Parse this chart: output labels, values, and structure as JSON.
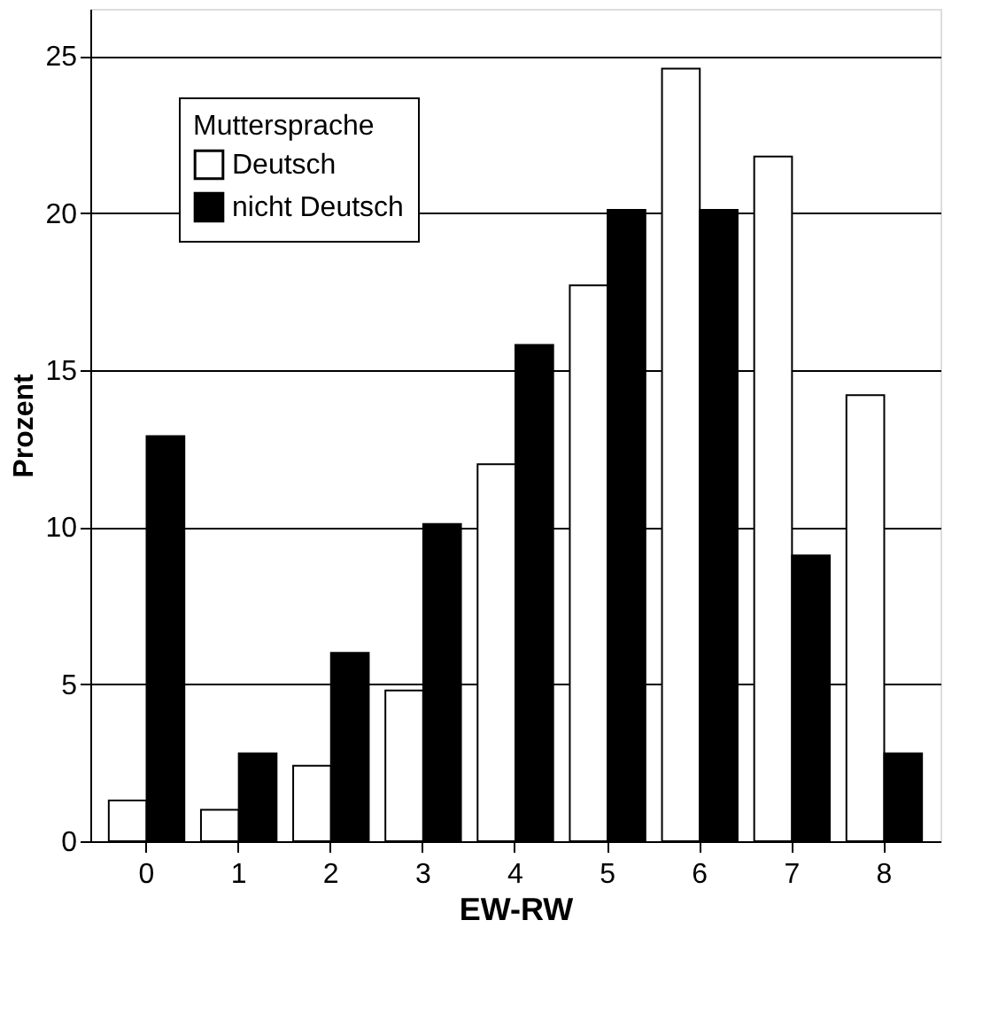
{
  "chart_data": {
    "type": "bar",
    "xlabel": "EW-RW",
    "ylabel": "Prozent",
    "legend_title": "Muttersprache",
    "categories": [
      "0",
      "1",
      "2",
      "3",
      "4",
      "5",
      "6",
      "7",
      "8"
    ],
    "series": [
      {
        "name": "Deutsch",
        "color": "#ffffff",
        "values": [
          1.3,
          1.0,
          2.4,
          4.8,
          12.0,
          17.7,
          24.6,
          21.8,
          14.2
        ]
      },
      {
        "name": "nicht Deutsch",
        "color": "#000000",
        "values": [
          12.9,
          2.8,
          6.0,
          10.1,
          15.8,
          20.1,
          20.1,
          9.1,
          2.8
        ]
      }
    ],
    "ylim": [
      0,
      26.5
    ],
    "yticks": [
      0,
      5,
      10,
      15,
      20,
      25
    ],
    "grid": "y",
    "legend": "top left"
  }
}
